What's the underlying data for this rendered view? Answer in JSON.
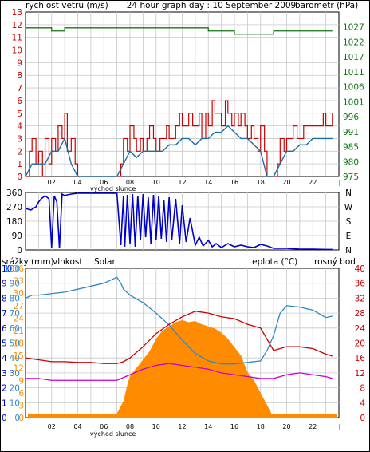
{
  "header": {
    "left": "rychlost vetru (m/s)",
    "center": "24 hour graph day : 10 September 2009",
    "right": "barometr (hPa)"
  },
  "colors": {
    "wind": "#cc0000",
    "wind_avg": "#1a6ea8",
    "baro": "#117711",
    "dir": "#0000cc",
    "hum": "#2a8ac8",
    "solar": "#ff8c00",
    "temp": "#cc0000",
    "dew": "#cc00cc",
    "rain": "#0000cc",
    "grid": "#c8c8c8",
    "axis": "#000000"
  },
  "chart_data": [
    {
      "type": "line",
      "panel": "wind-baro",
      "x_ticks": [
        "02",
        "04",
        "06",
        "08",
        "10",
        "12",
        "14",
        "16",
        "18",
        "20",
        "22"
      ],
      "y_left_label": "rychlost vetru (m/s)",
      "y_left_ticks": [
        "0",
        "1",
        "2",
        "3",
        "4",
        "5",
        "6",
        "7",
        "8",
        "9",
        "10",
        "11",
        "12",
        "13"
      ],
      "ylim_left": [
        0,
        13
      ],
      "y_right_label": "barometr (hPa)",
      "y_right_ticks": [
        "975",
        "980",
        "985",
        "991",
        "996",
        "1001",
        "1006",
        "1011",
        "1017",
        "1022",
        "1027"
      ],
      "ylim_right": [
        975,
        1027
      ],
      "annotation": "východ slunce",
      "series": [
        {
          "name": "rychlost vetru",
          "role": "gust",
          "x": [
            0,
            0.3,
            0.5,
            0.8,
            1.0,
            1.3,
            1.5,
            1.8,
            2.0,
            2.3,
            2.5,
            2.8,
            3.0,
            3.2,
            3.5,
            3.8,
            4.0,
            4.5,
            5.0,
            5.5,
            6.0,
            6.5,
            7.0,
            7.3,
            7.5,
            7.8,
            8.0,
            8.3,
            8.5,
            8.8,
            9.0,
            9.3,
            9.5,
            9.8,
            10.0,
            10.3,
            10.5,
            10.8,
            11.0,
            11.3,
            11.5,
            11.8,
            12.0,
            12.3,
            12.5,
            12.8,
            13.0,
            13.3,
            13.5,
            13.8,
            14.0,
            14.3,
            14.5,
            14.8,
            15.0,
            15.3,
            15.5,
            15.8,
            16.0,
            16.3,
            16.5,
            16.8,
            17.0,
            17.3,
            17.5,
            17.8,
            18.0,
            18.3,
            18.5,
            18.8,
            19.0,
            19.3,
            19.5,
            19.8,
            20.0,
            20.3,
            20.5,
            20.8,
            21.0,
            21.3,
            21.5,
            21.8,
            22.0,
            22.3,
            22.5,
            22.8,
            23.0,
            23.3,
            23.5
          ],
          "y": [
            0,
            2,
            3,
            1,
            2,
            0,
            3,
            1,
            3,
            2,
            4,
            3,
            5,
            2,
            3,
            1,
            0,
            0,
            0,
            0,
            0,
            0,
            0,
            1,
            3,
            2,
            4,
            3,
            2,
            3,
            2,
            3,
            4,
            3,
            2,
            3,
            3,
            4,
            3,
            3,
            4,
            5,
            4,
            4,
            5,
            4,
            4,
            5,
            3,
            5,
            4,
            6,
            5,
            5,
            4,
            6,
            5,
            4,
            5,
            4,
            5,
            4,
            3,
            4,
            3,
            2,
            4,
            2,
            0,
            0,
            0,
            1,
            3,
            2,
            3,
            3,
            4,
            3,
            3,
            4,
            4,
            4,
            4,
            4,
            4,
            5,
            4,
            4,
            5
          ]
        },
        {
          "name": "prumerna rychlost",
          "role": "average",
          "x": [
            0,
            0.5,
            1.0,
            1.5,
            2.0,
            2.5,
            3.0,
            3.5,
            4.0,
            5.0,
            6.0,
            7.0,
            7.5,
            8.0,
            8.5,
            9.0,
            9.5,
            10.0,
            10.5,
            11.0,
            11.5,
            12.0,
            12.5,
            13.0,
            13.5,
            14.0,
            14.5,
            15.0,
            15.5,
            16.0,
            16.5,
            17.0,
            17.5,
            18.0,
            18.5,
            19.0,
            19.5,
            20.0,
            20.5,
            21.0,
            21.5,
            22.0,
            22.5,
            23.0,
            23.5
          ],
          "y": [
            0,
            1,
            1,
            1,
            2,
            2,
            3,
            1,
            0,
            0,
            0,
            0,
            1,
            2,
            1.5,
            2,
            2,
            2,
            2,
            2.5,
            2.5,
            3,
            3,
            2.5,
            3,
            3,
            3.5,
            3.5,
            4,
            3.5,
            3,
            3,
            2.5,
            2,
            0,
            0,
            1,
            2,
            2,
            2.5,
            2.5,
            3,
            3,
            3,
            3
          ]
        },
        {
          "name": "barometr",
          "role": "pressure",
          "x": [
            0,
            1,
            2,
            3,
            4,
            5,
            6,
            7,
            8,
            9,
            10,
            11,
            12,
            13,
            14,
            15,
            16,
            17,
            18,
            19,
            20,
            21,
            22,
            23.5
          ],
          "y": [
            1022,
            1022,
            1021,
            1022,
            1022,
            1022,
            1022,
            1022,
            1022,
            1022,
            1022,
            1022,
            1022,
            1022,
            1021,
            1021,
            1020,
            1020,
            1020,
            1021,
            1021,
            1021,
            1021,
            1021
          ]
        }
      ]
    },
    {
      "type": "line",
      "panel": "direction",
      "x_ticks": [
        "02",
        "04",
        "06",
        "08",
        "10",
        "12",
        "14",
        "16",
        "18",
        "20",
        "22"
      ],
      "y_left_ticks": [
        "0",
        "90",
        "180",
        "270",
        "360"
      ],
      "ylim_left": [
        0,
        360
      ],
      "y_right_ticks": [
        "N",
        "W",
        "S",
        "E",
        "N"
      ],
      "series": [
        {
          "name": "smer vetru",
          "x": [
            0,
            0.4,
            0.8,
            1.0,
            1.2,
            1.5,
            1.8,
            2.0,
            2.2,
            2.4,
            2.6,
            2.8,
            3.0,
            3.2,
            3.5,
            4.0,
            5.0,
            6.0,
            7.0,
            7.3,
            7.5,
            7.6,
            7.8,
            8.0,
            8.2,
            8.4,
            8.6,
            8.8,
            9.0,
            9.2,
            9.4,
            9.6,
            9.8,
            10.0,
            10.2,
            10.4,
            10.6,
            10.8,
            11.0,
            11.2,
            11.5,
            11.8,
            12.0,
            12.3,
            12.6,
            13.0,
            13.3,
            13.6,
            14.0,
            14.3,
            14.6,
            15.0,
            15.5,
            16.0,
            16.5,
            17.0,
            17.5,
            18.0,
            18.5,
            19.0,
            20.0,
            21.0,
            22.0,
            23.0,
            23.5
          ],
          "y": [
            260,
            250,
            270,
            300,
            320,
            340,
            320,
            15,
            340,
            300,
            10,
            350,
            340,
            345,
            350,
            355,
            355,
            355,
            355,
            30,
            340,
            20,
            345,
            40,
            350,
            20,
            340,
            60,
            350,
            80,
            330,
            40,
            345,
            60,
            340,
            70,
            310,
            50,
            330,
            60,
            320,
            40,
            280,
            50,
            200,
            30,
            80,
            25,
            60,
            20,
            40,
            15,
            40,
            20,
            30,
            20,
            15,
            35,
            25,
            10,
            10,
            5,
            5,
            3,
            3
          ]
        }
      ]
    },
    {
      "type": "line",
      "panel": "rain-hum-solar-temp",
      "x_ticks": [
        "02",
        "04",
        "06",
        "08",
        "10",
        "12",
        "14",
        "16",
        "18",
        "20",
        "22"
      ],
      "annotation": "východ slunce",
      "legend": [
        "srážky (mm)",
        "vlhkost",
        "Solar",
        "teplota (°C)",
        "rosný bod"
      ],
      "axis_rain_ticks": [
        "0",
        "1",
        "2",
        "3",
        "4",
        "5",
        "6",
        "7",
        "8",
        "9",
        "10"
      ],
      "axis_hum_ticks": [
        "0",
        "10",
        "20",
        "30",
        "40",
        "50",
        "60",
        "70",
        "80",
        "90",
        "100"
      ],
      "axis_solar_ticks": [
        "0",
        "3",
        "6",
        "9",
        "12",
        "15",
        "18",
        "21",
        "24",
        "27",
        "30",
        "33",
        "36"
      ],
      "axis_temp_ticks": [
        "0",
        "4",
        "8",
        "12",
        "16",
        "20",
        "24",
        "28",
        "32",
        "36",
        "40"
      ],
      "series": [
        {
          "name": "vlhkost",
          "unit": "%",
          "x": [
            0,
            0.5,
            1,
            2,
            3,
            4,
            5,
            6,
            7,
            7.3,
            7.5,
            8,
            9,
            10,
            11,
            12,
            13,
            14,
            15,
            16,
            17,
            18,
            18.5,
            19,
            19.5,
            20,
            21,
            22,
            23,
            23.5
          ],
          "y": [
            80,
            82,
            82,
            83,
            84,
            86,
            88,
            90,
            94,
            90,
            86,
            82,
            77,
            70,
            62,
            52,
            43,
            38,
            36,
            36,
            37,
            38,
            45,
            55,
            70,
            75,
            74,
            72,
            67,
            68
          ]
        },
        {
          "name": "Solar",
          "x": [
            0,
            6.5,
            7.0,
            7.5,
            7.8,
            8.0,
            8.5,
            9,
            9.5,
            10,
            10.5,
            11,
            11.5,
            12,
            12.5,
            13,
            13.5,
            14,
            14.5,
            15,
            15.5,
            16,
            16.5,
            17,
            17.5,
            18,
            18.5,
            19,
            23.5
          ],
          "y": [
            0,
            0,
            1,
            4,
            8,
            10,
            12,
            14,
            16,
            19,
            21,
            22,
            23,
            23.5,
            23,
            23.3,
            22.5,
            22,
            21.5,
            20.5,
            19,
            17,
            15,
            11,
            9,
            6,
            3,
            0,
            0
          ]
        },
        {
          "name": "teplota (°C)",
          "x": [
            0,
            1,
            2,
            3,
            4,
            5,
            6,
            7,
            7.5,
            8,
            9,
            10,
            11,
            12,
            13,
            14,
            15,
            16,
            17,
            18,
            19,
            20,
            21,
            22,
            23,
            23.5
          ],
          "y": [
            16,
            15.5,
            15,
            15,
            14.8,
            14.8,
            14.5,
            14.5,
            15,
            16,
            19,
            22.5,
            25,
            27,
            28.5,
            28,
            27,
            26.5,
            25,
            24,
            18,
            19,
            19,
            18.5,
            17,
            16.5
          ]
        },
        {
          "name": "rosný bod",
          "x": [
            0,
            1,
            2,
            3,
            4,
            5,
            6,
            7,
            8,
            9,
            10,
            11,
            12,
            13,
            14,
            15,
            16,
            17,
            18,
            19,
            20,
            21,
            22,
            23,
            23.5
          ],
          "y": [
            10.5,
            10.5,
            10,
            10,
            10,
            10,
            10,
            10,
            11.5,
            13,
            14,
            14.5,
            14,
            13.5,
            13,
            12,
            11.5,
            11,
            10.5,
            10.5,
            11.5,
            12,
            11.5,
            11,
            10.5
          ]
        },
        {
          "name": "srážky (mm)",
          "x": [
            0,
            23.5
          ],
          "y": [
            0,
            0
          ]
        }
      ]
    }
  ]
}
